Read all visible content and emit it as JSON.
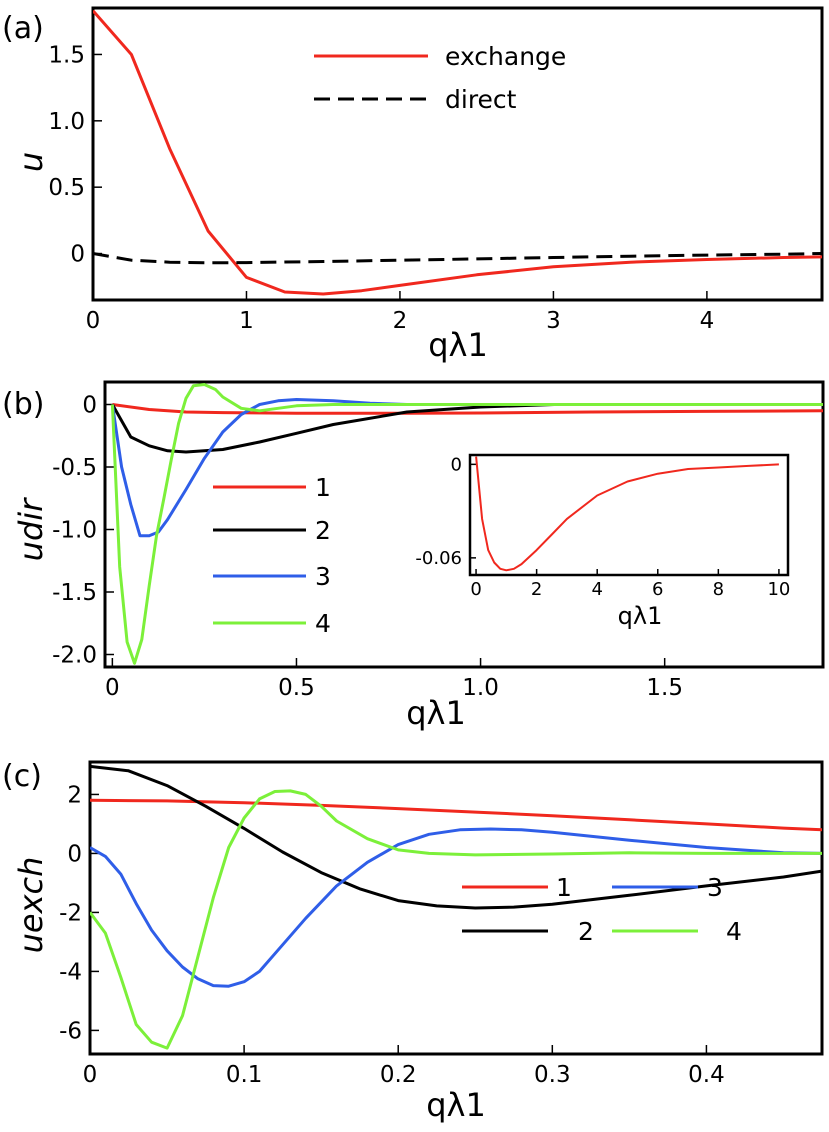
{
  "panels": {
    "a": {
      "label": "(a)"
    },
    "b": {
      "label": "(b)"
    },
    "c": {
      "label": "(c)"
    }
  },
  "colors": {
    "red": "#f0281e",
    "black": "#000000",
    "blue": "#2f5ee8",
    "green": "#7cf03a"
  },
  "chart_data": [
    {
      "id": "a",
      "type": "line",
      "title": "",
      "xlabel": "qλ1",
      "ylabel": "u",
      "xlim": [
        0,
        4.75
      ],
      "ylim": [
        -0.35,
        1.85
      ],
      "xticks": [
        0,
        1,
        2,
        3,
        4
      ],
      "xtick_labels": [
        "0",
        "1",
        "2",
        "3",
        "4"
      ],
      "yticks": [
        0,
        0.5,
        1.0,
        1.5
      ],
      "ytick_labels": [
        "0",
        "0.5",
        "1.0",
        "1.5"
      ],
      "legend_position": "top-center",
      "series": [
        {
          "name": "exchange",
          "color": "#f0281e",
          "dash": "solid",
          "x": [
            0,
            0.25,
            0.5,
            0.75,
            1.0,
            1.25,
            1.5,
            1.75,
            2.0,
            2.5,
            3.0,
            3.5,
            4.0,
            4.5,
            4.75
          ],
          "y": [
            1.83,
            1.5,
            0.79,
            0.17,
            -0.18,
            -0.29,
            -0.305,
            -0.28,
            -0.24,
            -0.16,
            -0.1,
            -0.065,
            -0.045,
            -0.03,
            -0.025
          ]
        },
        {
          "name": "direct",
          "color": "#000000",
          "dash": "dashed",
          "x": [
            0,
            0.25,
            0.5,
            0.75,
            1.0,
            1.5,
            2.0,
            2.5,
            3.0,
            3.5,
            4.0,
            4.5,
            4.75
          ],
          "y": [
            0,
            -0.05,
            -0.065,
            -0.07,
            -0.068,
            -0.06,
            -0.05,
            -0.04,
            -0.03,
            -0.02,
            -0.012,
            -0.005,
            0
          ]
        }
      ]
    },
    {
      "id": "b",
      "type": "line",
      "title": "",
      "xlabel": "qλ1",
      "ylabel": "udir",
      "xlim": [
        -0.02,
        1.93
      ],
      "ylim": [
        -2.1,
        0.18
      ],
      "xticks": [
        0,
        0.5,
        1.0,
        1.5
      ],
      "xtick_labels": [
        "0",
        "0.5",
        "1.0",
        "1.5"
      ],
      "yticks": [
        0,
        -0.5,
        -1.0,
        -1.5,
        -2.0
      ],
      "ytick_labels": [
        "0",
        "-0.5",
        "-1.0",
        "-1.5",
        "-2.0"
      ],
      "legend_position": "center-left",
      "series": [
        {
          "name": "1",
          "color": "#f0281e",
          "x": [
            0,
            0.1,
            0.2,
            0.3,
            0.5,
            0.8,
            1.0,
            1.3,
            1.6,
            1.93
          ],
          "y": [
            0,
            -0.04,
            -0.06,
            -0.065,
            -0.07,
            -0.07,
            -0.068,
            -0.06,
            -0.055,
            -0.05
          ]
        },
        {
          "name": "2",
          "color": "#000000",
          "x": [
            0,
            0.05,
            0.1,
            0.15,
            0.2,
            0.3,
            0.4,
            0.5,
            0.6,
            0.8,
            1.0,
            1.2,
            1.5,
            1.93
          ],
          "y": [
            0,
            -0.26,
            -0.33,
            -0.37,
            -0.38,
            -0.36,
            -0.3,
            -0.23,
            -0.16,
            -0.06,
            -0.02,
            0,
            0,
            0
          ]
        },
        {
          "name": "3",
          "color": "#2f5ee8",
          "x": [
            0,
            0.025,
            0.05,
            0.075,
            0.1,
            0.125,
            0.15,
            0.2,
            0.25,
            0.3,
            0.35,
            0.4,
            0.45,
            0.5,
            0.6,
            0.7,
            0.8,
            1.0,
            1.3,
            1.93
          ],
          "y": [
            0,
            -0.5,
            -0.8,
            -1.05,
            -1.05,
            -1.02,
            -0.92,
            -0.68,
            -0.43,
            -0.22,
            -0.08,
            0,
            0.03,
            0.04,
            0.03,
            0.01,
            0,
            0,
            0,
            0
          ]
        },
        {
          "name": "4",
          "color": "#7cf03a",
          "x": [
            0,
            0.02,
            0.04,
            0.06,
            0.08,
            0.1,
            0.12,
            0.14,
            0.16,
            0.18,
            0.2,
            0.22,
            0.25,
            0.28,
            0.3,
            0.35,
            0.4,
            0.5,
            0.6,
            0.8,
            1.0,
            1.93
          ],
          "y": [
            0,
            -1.3,
            -1.9,
            -2.07,
            -1.88,
            -1.45,
            -1.05,
            -0.75,
            -0.44,
            -0.15,
            0.05,
            0.15,
            0.16,
            0.12,
            0.06,
            -0.03,
            -0.05,
            -0.01,
            0,
            0,
            0,
            0
          ]
        }
      ]
    },
    {
      "id": "b-inset",
      "type": "line",
      "title": "",
      "xlabel": "qλ1",
      "ylabel": "",
      "xlim": [
        -0.2,
        10.3
      ],
      "ylim": [
        -0.071,
        0.006
      ],
      "xticks": [
        0,
        2,
        4,
        6,
        8,
        10
      ],
      "xtick_labels": [
        "0",
        "2",
        "4",
        "6",
        "8",
        "10"
      ],
      "yticks": [
        0,
        -0.06
      ],
      "ytick_labels": [
        "0",
        "-0.06"
      ],
      "series": [
        {
          "name": "1",
          "color": "#f0281e",
          "x": [
            0,
            0.2,
            0.4,
            0.6,
            0.8,
            1.0,
            1.25,
            1.5,
            2.0,
            2.5,
            3.0,
            4.0,
            5.0,
            6.0,
            7.0,
            8.0,
            9.0,
            10.0
          ],
          "y": [
            0.005,
            -0.035,
            -0.055,
            -0.063,
            -0.067,
            -0.068,
            -0.067,
            -0.064,
            -0.055,
            -0.045,
            -0.035,
            -0.02,
            -0.011,
            -0.006,
            -0.003,
            -0.002,
            -0.001,
            0
          ]
        }
      ]
    },
    {
      "id": "c",
      "type": "line",
      "title": "",
      "xlabel": "qλ1",
      "ylabel": "uexch",
      "xlim": [
        0,
        0.475
      ],
      "ylim": [
        -6.8,
        3.1
      ],
      "xticks": [
        0,
        0.1,
        0.2,
        0.3,
        0.4
      ],
      "xtick_labels": [
        "0",
        "0.1",
        "0.2",
        "0.3",
        "0.4"
      ],
      "yticks": [
        2,
        0,
        -2,
        -4,
        -6
      ],
      "ytick_labels": [
        "2",
        "0",
        "-2",
        "-4",
        "-6"
      ],
      "legend_position": "lower-right",
      "series": [
        {
          "name": "1",
          "color": "#f0281e",
          "x": [
            0,
            0.05,
            0.1,
            0.15,
            0.2,
            0.25,
            0.3,
            0.35,
            0.4,
            0.45,
            0.475
          ],
          "y": [
            1.8,
            1.78,
            1.72,
            1.63,
            1.52,
            1.4,
            1.28,
            1.14,
            1.0,
            0.86,
            0.8
          ]
        },
        {
          "name": "2",
          "color": "#000000",
          "x": [
            0,
            0.025,
            0.05,
            0.075,
            0.1,
            0.125,
            0.15,
            0.175,
            0.2,
            0.225,
            0.25,
            0.275,
            0.3,
            0.35,
            0.4,
            0.45,
            0.475
          ],
          "y": [
            2.95,
            2.8,
            2.3,
            1.6,
            0.85,
            0.05,
            -0.65,
            -1.2,
            -1.6,
            -1.78,
            -1.85,
            -1.82,
            -1.72,
            -1.42,
            -1.1,
            -0.8,
            -0.6
          ]
        },
        {
          "name": "3",
          "color": "#2f5ee8",
          "x": [
            0,
            0.01,
            0.02,
            0.03,
            0.04,
            0.05,
            0.06,
            0.07,
            0.08,
            0.09,
            0.1,
            0.11,
            0.12,
            0.14,
            0.16,
            0.18,
            0.2,
            0.22,
            0.24,
            0.26,
            0.28,
            0.3,
            0.35,
            0.4,
            0.45,
            0.475
          ],
          "y": [
            0.2,
            -0.1,
            -0.7,
            -1.7,
            -2.6,
            -3.3,
            -3.85,
            -4.25,
            -4.48,
            -4.5,
            -4.35,
            -4.0,
            -3.4,
            -2.2,
            -1.1,
            -0.3,
            0.3,
            0.65,
            0.8,
            0.83,
            0.8,
            0.72,
            0.45,
            0.2,
            0.02,
            0
          ]
        },
        {
          "name": "4",
          "color": "#7cf03a",
          "x": [
            0,
            0.01,
            0.02,
            0.03,
            0.04,
            0.05,
            0.06,
            0.07,
            0.08,
            0.09,
            0.1,
            0.11,
            0.12,
            0.13,
            0.14,
            0.15,
            0.16,
            0.18,
            0.2,
            0.22,
            0.25,
            0.3,
            0.35,
            0.4,
            0.475
          ],
          "y": [
            -2.0,
            -2.7,
            -4.2,
            -5.8,
            -6.4,
            -6.6,
            -5.5,
            -3.5,
            -1.5,
            0.2,
            1.2,
            1.85,
            2.1,
            2.12,
            2.0,
            1.6,
            1.1,
            0.5,
            0.12,
            0,
            -0.05,
            -0.02,
            0.02,
            0,
            0
          ]
        }
      ]
    }
  ]
}
